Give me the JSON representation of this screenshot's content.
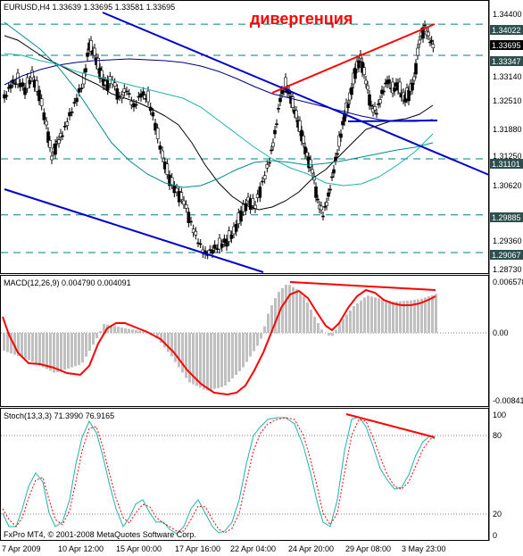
{
  "window": {
    "symbol_header": "EURUSD,H4  1.33639 1.33695 1.33581 1.33695"
  },
  "annotation": {
    "divergence": "дивергенция",
    "divergence_color": "#ff0000"
  },
  "price_panel": {
    "y_labels": [
      "1.34400",
      "1.33140",
      "1.32510",
      "1.31880",
      "1.31250",
      "1.30620",
      "1.29360",
      "1.28730"
    ],
    "level_tags": [
      "1.34022",
      "1.33695",
      "1.33347",
      "1.31101",
      "1.29885",
      "1.29067"
    ],
    "current_price": "1.33695",
    "levels": [
      1.34022,
      1.33347,
      1.31101,
      1.29885,
      1.29067
    ],
    "ylim": [
      1.2866,
      1.3449
    ]
  },
  "macd_panel": {
    "title": "MACD(12,26,9) 0.004790 0.004091",
    "y_labels": [
      "0.006578",
      "0.00",
      "-0.008415"
    ],
    "signal_color": "#ff0000",
    "histogram_color": "#c0c0c0"
  },
  "stoch_panel": {
    "title": "Stoch(13,3,3) 71.3990 76.9165",
    "y_labels": [
      "100",
      "80",
      "20",
      "0"
    ],
    "main_color": "#20b2aa",
    "signal_color": "#ff0000"
  },
  "x_axis": {
    "labels": [
      "7 Apr 2009",
      "10 Apr 12:00",
      "15 Apr 00:00",
      "17 Apr 16:00",
      "22 Apr 04:00",
      "24 Apr 20:00",
      "29 Apr 08:00",
      "3 May 23:00"
    ]
  },
  "footer": {
    "copyright": "FxPro MT4, © 2001-2008 MetaQuotes Software Corp."
  },
  "colors": {
    "grid_dash": "#008080",
    "trend_blue": "#0000cd",
    "trend_red": "#ff0000",
    "ma_black": "#000000",
    "ma_teal": "#20b2aa",
    "ma_navy": "#000080",
    "tag_bg": "#2f4f4f",
    "price_tag_bg": "#000000"
  }
}
